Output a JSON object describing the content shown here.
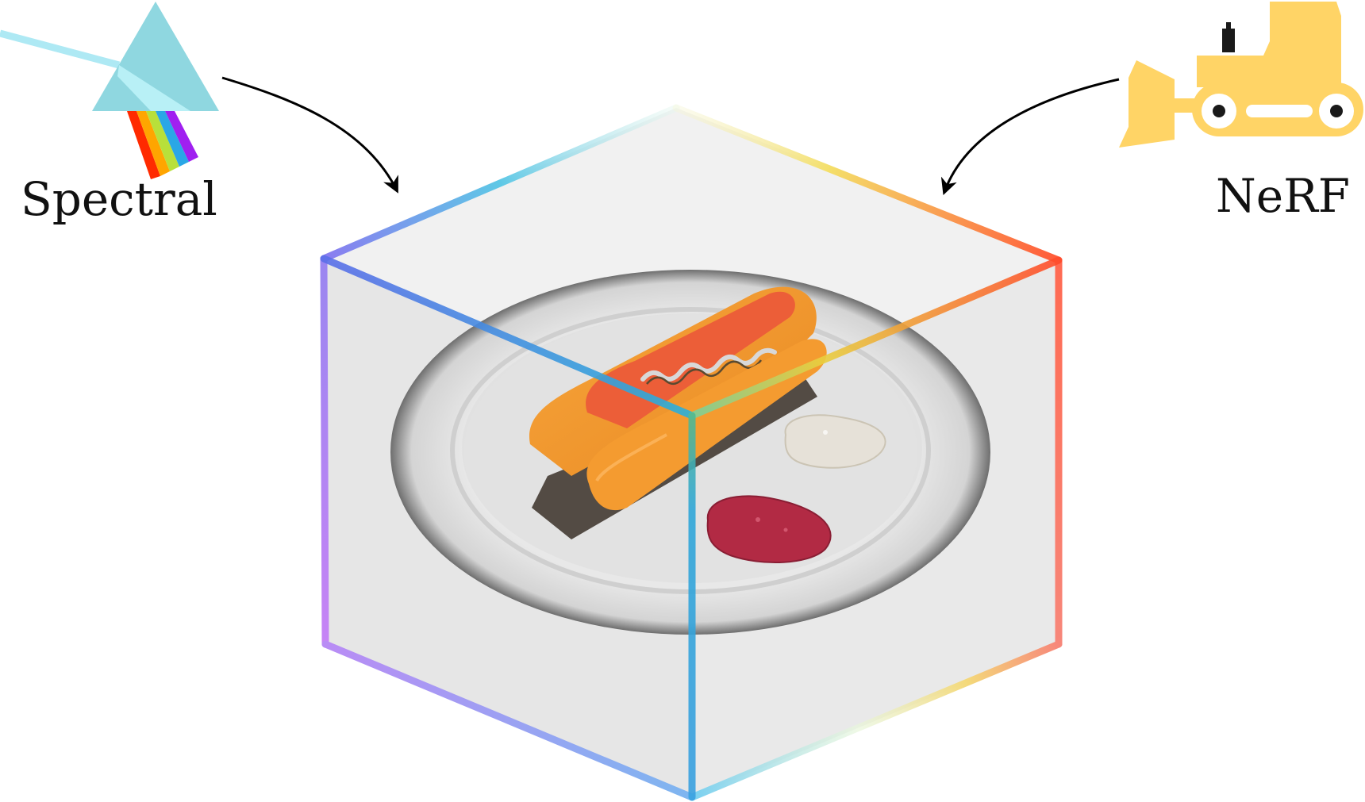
{
  "labels": {
    "spectral": "Spectral",
    "nerf": "NeRF"
  },
  "icons": {
    "spectral": "prism-rainbow-icon",
    "nerf": "bulldozer-icon"
  },
  "colors": {
    "prism": "#8fd7e0",
    "prism_inner": "#b6eff5",
    "light_beam": "#a9ecf6",
    "rainbow": [
      "#ff2a00",
      "#ffa500",
      "#b8e03a",
      "#2aa7e6",
      "#a020f0"
    ],
    "bulldozer": "#ffd466",
    "arrow": "#000000",
    "cube_face": "#e9e9e9",
    "cube_left_gradient": [
      "#6a73f0",
      "#a98cf0",
      "#c48af5"
    ],
    "cube_right_gradient": [
      "#ff4a2a",
      "#ff8a72",
      "#fb9384"
    ],
    "cube_center_edge": "#2fa6d8",
    "plate": "#e6e6e6",
    "bun": "#f39a2e",
    "sausage": "#f0623a",
    "mayo": "#e9e4dc",
    "ketchup": "#b22a44"
  }
}
